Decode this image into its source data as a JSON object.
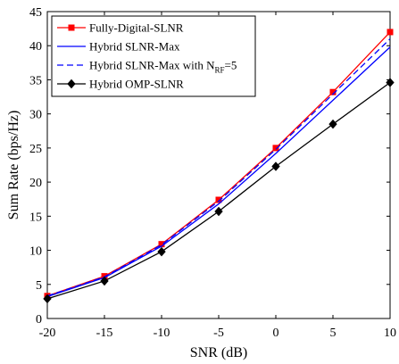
{
  "chart_data": {
    "type": "line",
    "title": "",
    "xlabel": "SNR (dB)",
    "ylabel": "Sum Rate (bps/Hz)",
    "xlim": [
      -20,
      10
    ],
    "ylim": [
      0,
      45
    ],
    "xticks": [
      -20,
      -15,
      -10,
      -5,
      0,
      5,
      10
    ],
    "yticks": [
      0,
      5,
      10,
      15,
      20,
      25,
      30,
      35,
      40,
      45
    ],
    "grid": false,
    "legend_position": "top-left",
    "x": [
      -20,
      -15,
      -10,
      -5,
      0,
      5,
      10
    ],
    "series": [
      {
        "name": "Fully-Digital-SLNR",
        "values": [
          3.3,
          6.2,
          10.9,
          17.4,
          25.0,
          33.2,
          42.0
        ],
        "color": "#ff0000",
        "line": "solid",
        "marker": "square"
      },
      {
        "name": "Hybrid SLNR-Max",
        "values": [
          3.2,
          6.0,
          10.6,
          16.8,
          24.2,
          32.0,
          39.8
        ],
        "color": "#0000ff",
        "line": "solid",
        "marker": "none"
      },
      {
        "name": "Hybrid SLNR-Max with N",
        "name_sub": "RF",
        "name_suffix": "=5",
        "values": [
          3.3,
          6.1,
          10.8,
          17.2,
          24.8,
          32.9,
          41.0
        ],
        "color": "#0000ff",
        "line": "dashed",
        "marker": "none"
      },
      {
        "name": "Hybrid OMP-SLNR",
        "values": [
          2.9,
          5.5,
          9.8,
          15.7,
          22.3,
          28.5,
          34.6
        ],
        "color": "#000000",
        "line": "solid",
        "marker": "diamond"
      }
    ]
  }
}
